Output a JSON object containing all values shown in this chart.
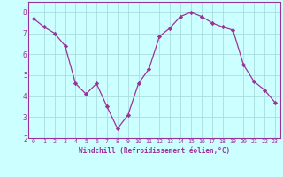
{
  "x": [
    0,
    1,
    2,
    3,
    4,
    5,
    6,
    7,
    8,
    9,
    10,
    11,
    12,
    13,
    14,
    15,
    16,
    17,
    18,
    19,
    20,
    21,
    22,
    23
  ],
  "y": [
    7.7,
    7.3,
    7.0,
    6.4,
    4.6,
    4.1,
    4.6,
    3.5,
    2.45,
    3.1,
    4.6,
    5.3,
    6.85,
    7.25,
    7.8,
    8.0,
    7.8,
    7.5,
    7.3,
    7.15,
    5.5,
    4.7,
    4.3,
    3.7
  ],
  "line_color": "#993399",
  "marker_color": "#993399",
  "bg_color": "#ccffff",
  "grid_color": "#aadddd",
  "xlabel": "Windchill (Refroidissement éolien,°C)",
  "ylim": [
    2,
    8.5
  ],
  "xlim": [
    -0.5,
    23.5
  ],
  "yticks": [
    2,
    3,
    4,
    5,
    6,
    7,
    8
  ],
  "xticks": [
    0,
    1,
    2,
    3,
    4,
    5,
    6,
    7,
    8,
    9,
    10,
    11,
    12,
    13,
    14,
    15,
    16,
    17,
    18,
    19,
    20,
    21,
    22,
    23
  ],
  "tick_color": "#993399",
  "label_color": "#993399",
  "spine_color": "#993399",
  "font_family": "monospace"
}
